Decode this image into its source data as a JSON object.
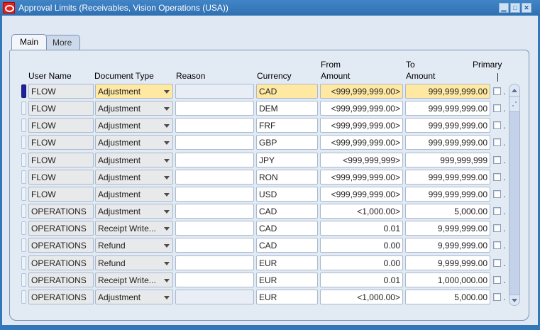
{
  "window": {
    "title": "Approval Limits (Receivables, Vision Operations (USA))"
  },
  "icons": {
    "minimize": "▁",
    "maximize": "□",
    "close": "✕"
  },
  "tabs": [
    {
      "label": "Main",
      "active": true
    },
    {
      "label": "More",
      "active": false
    }
  ],
  "table": {
    "headers": {
      "user_name": "User Name",
      "document_type": "Document Type",
      "reason": "Reason",
      "currency": "Currency",
      "from_line1": "From",
      "from_line2": "Amount",
      "to_line1": "To",
      "to_line2": "Amount",
      "primary": "Primary"
    },
    "selected_row_index": 0,
    "muted_reason_rows": [
      0,
      12
    ],
    "primary_dot": ".",
    "rows": [
      {
        "user_name": "FLOW",
        "document_type": "Adjustment",
        "reason": "",
        "currency": "CAD",
        "from_amount": "<999,999,999.00>",
        "to_amount": "999,999,999.00",
        "primary_checked": false
      },
      {
        "user_name": "FLOW",
        "document_type": "Adjustment",
        "reason": "",
        "currency": "DEM",
        "from_amount": "<999,999,999.00>",
        "to_amount": "999,999,999.00",
        "primary_checked": false
      },
      {
        "user_name": "FLOW",
        "document_type": "Adjustment",
        "reason": "",
        "currency": "FRF",
        "from_amount": "<999,999,999.00>",
        "to_amount": "999,999,999.00",
        "primary_checked": false
      },
      {
        "user_name": "FLOW",
        "document_type": "Adjustment",
        "reason": "",
        "currency": "GBP",
        "from_amount": "<999,999,999.00>",
        "to_amount": "999,999,999.00",
        "primary_checked": false
      },
      {
        "user_name": "FLOW",
        "document_type": "Adjustment",
        "reason": "",
        "currency": "JPY",
        "from_amount": "<999,999,999>",
        "to_amount": "999,999,999",
        "primary_checked": false
      },
      {
        "user_name": "FLOW",
        "document_type": "Adjustment",
        "reason": "",
        "currency": "RON",
        "from_amount": "<999,999,999.00>",
        "to_amount": "999,999,999.00",
        "primary_checked": false
      },
      {
        "user_name": "FLOW",
        "document_type": "Adjustment",
        "reason": "",
        "currency": "USD",
        "from_amount": "<999,999,999.00>",
        "to_amount": "999,999,999.00",
        "primary_checked": false
      },
      {
        "user_name": "OPERATIONS",
        "document_type": "Adjustment",
        "reason": "",
        "currency": "CAD",
        "from_amount": "<1,000.00>",
        "to_amount": "5,000.00",
        "primary_checked": false
      },
      {
        "user_name": "OPERATIONS",
        "document_type": "Receipt Write...",
        "reason": "",
        "currency": "CAD",
        "from_amount": "0.01",
        "to_amount": "9,999,999.00",
        "primary_checked": false
      },
      {
        "user_name": "OPERATIONS",
        "document_type": "Refund",
        "reason": "",
        "currency": "CAD",
        "from_amount": "0.00",
        "to_amount": "9,999,999.00",
        "primary_checked": false
      },
      {
        "user_name": "OPERATIONS",
        "document_type": "Refund",
        "reason": "",
        "currency": "EUR",
        "from_amount": "0.00",
        "to_amount": "9,999,999.00",
        "primary_checked": false
      },
      {
        "user_name": "OPERATIONS",
        "document_type": "Receipt Write...",
        "reason": "",
        "currency": "EUR",
        "from_amount": "0.01",
        "to_amount": "1,000,000.00",
        "primary_checked": false
      },
      {
        "user_name": "OPERATIONS",
        "document_type": "Adjustment",
        "reason": "",
        "currency": "EUR",
        "from_amount": "<1,000.00>",
        "to_amount": "5,000.00",
        "primary_checked": false
      }
    ]
  },
  "colors": {
    "title_bar": "#3377bb",
    "canvas": "#e2eaf4",
    "field_highlight": "#ffe9a2",
    "display_only_field": "#e8e9eb",
    "selected_record_bar": "#1f229a",
    "scroll_track": "#c3d2e8"
  }
}
